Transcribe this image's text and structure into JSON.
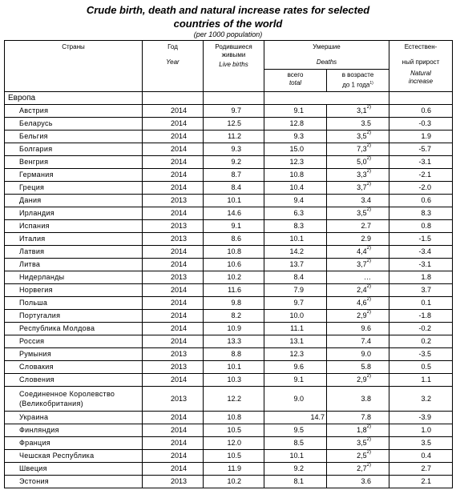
{
  "title_line1": "Crude birth, death and natural increase rates for selected",
  "title_line2": "countries of the world",
  "unit": "(per 1000 population)",
  "headers": {
    "country_ru": "Страны",
    "year_ru": "Год",
    "year_en": "Year",
    "births_ru_1": "Родившиеся",
    "births_ru_2": "живыми",
    "births_en": "Live births",
    "deaths_ru": "Умершие",
    "deaths_en": "Deaths",
    "total_ru": "всего",
    "total_en": "total",
    "infant_ru_1": "в возрасте",
    "infant_ru_2": "до 1 года",
    "infant_note": "1)",
    "nat_ru_1": "Естествен-",
    "nat_ru_2": "ный прирост",
    "nat_en_1": "Natural",
    "nat_en_2": "increase"
  },
  "region": "Европа",
  "rows": [
    {
      "country": "Австрия",
      "year": "2014",
      "births": "9.7",
      "deaths": "9.1",
      "infant": "3,1",
      "note": "2)",
      "natural": "0.6"
    },
    {
      "country": "Беларусь",
      "year": "2014",
      "births": "12.5",
      "deaths": "12.8",
      "infant": "3.5",
      "note": "",
      "natural": "-0.3"
    },
    {
      "country": "Бельгия",
      "year": "2014",
      "births": "11.2",
      "deaths": "9.3",
      "infant": "3,5",
      "note": "2)",
      "natural": "1.9"
    },
    {
      "country": "Болгария",
      "year": "2014",
      "births": "9.3",
      "deaths": "15.0",
      "infant": "7,3",
      "note": "2)",
      "natural": "-5.7"
    },
    {
      "country": "Венгрия",
      "year": "2014",
      "births": "9.2",
      "deaths": "12.3",
      "infant": "5,0",
      "note": "2)",
      "natural": "-3.1"
    },
    {
      "country": "Германия",
      "year": "2014",
      "births": "8.7",
      "deaths": "10.8",
      "infant": "3,3",
      "note": "2)",
      "natural": "-2.1"
    },
    {
      "country": "Греция",
      "year": "2014",
      "births": "8.4",
      "deaths": "10.4",
      "infant": "3,7",
      "note": "2)",
      "natural": "-2.0"
    },
    {
      "country": "Дания",
      "year": "2013",
      "births": "10.1",
      "deaths": "9.4",
      "infant": "3.4",
      "note": "",
      "natural": "0.6"
    },
    {
      "country": "Ирландия",
      "year": "2014",
      "births": "14.6",
      "deaths": "6.3",
      "infant": "3,5",
      "note": "2)",
      "natural": "8.3"
    },
    {
      "country": "Испания",
      "year": "2013",
      "births": "9.1",
      "deaths": "8.3",
      "infant": "2.7",
      "note": "",
      "natural": "0.8"
    },
    {
      "country": "Италия",
      "year": "2013",
      "births": "8.6",
      "deaths": "10.1",
      "infant": "2.9",
      "note": "",
      "natural": "-1.5"
    },
    {
      "country": "Латвия",
      "year": "2014",
      "births": "10.8",
      "deaths": "14.2",
      "infant": "4,4",
      "note": "2)",
      "natural": "-3.4"
    },
    {
      "country": "Литва",
      "year": "2014",
      "births": "10.6",
      "deaths": "13.7",
      "infant": "3,7",
      "note": "2)",
      "natural": "-3.1"
    },
    {
      "country": "Нидерланды",
      "year": "2013",
      "births": "10.2",
      "deaths": "8.4",
      "infant": "…",
      "note": "",
      "natural": "1.8"
    },
    {
      "country": "Норвегия",
      "year": "2014",
      "births": "11.6",
      "deaths": "7.9",
      "infant": "2,4",
      "note": "2)",
      "natural": "3.7"
    },
    {
      "country": "Польша",
      "year": "2014",
      "births": "9.8",
      "deaths": "9.7",
      "infant": "4,6",
      "note": "2)",
      "natural": "0.1"
    },
    {
      "country": "Португалия",
      "year": "2014",
      "births": "8.2",
      "deaths": "10.0",
      "infant": "2,9",
      "note": "2)",
      "natural": "-1.8"
    },
    {
      "country": "Республика Молдова",
      "year": "2014",
      "births": "10.9",
      "deaths": "11.1",
      "infant": "9.6",
      "note": "",
      "natural": "-0.2"
    },
    {
      "country": "Россия",
      "year": "2014",
      "births": "13.3",
      "deaths": "13.1",
      "infant": "7.4",
      "note": "",
      "natural": "0.2"
    },
    {
      "country": "Румыния",
      "year": "2013",
      "births": "8.8",
      "deaths": "12.3",
      "infant": "9.0",
      "note": "",
      "natural": "-3.5"
    },
    {
      "country": "Словакия",
      "year": "2013",
      "births": "10.1",
      "deaths": "9.6",
      "infant": "5.8",
      "note": "",
      "natural": "0.5"
    },
    {
      "country": "Словения",
      "year": "2014",
      "births": "10.3",
      "deaths": "9.1",
      "infant": "2,9",
      "note": "2)",
      "natural": "1.1"
    },
    {
      "country": "Соединенное Королевство",
      "country2": "(Великобритания)",
      "year": "2013",
      "births": "12.2",
      "deaths": "9.0",
      "infant": "3.8",
      "note": "",
      "natural": "3.2"
    },
    {
      "country": "Украина",
      "year": "2014",
      "births": "10.8",
      "deaths": "14.7",
      "infant": "7.8",
      "note": "",
      "natural": "-3.9",
      "deaths_left": true
    },
    {
      "country": "Финляндия",
      "year": "2014",
      "births": "10.5",
      "deaths": "9.5",
      "infant": "1,8",
      "note": "2)",
      "natural": "1.0"
    },
    {
      "country": "Франция",
      "year": "2014",
      "births": "12.0",
      "deaths": "8.5",
      "infant": "3,5",
      "note": "2)",
      "natural": "3.5"
    },
    {
      "country": "Чешская Республика",
      "year": "2014",
      "births": "10.5",
      "deaths": "10.1",
      "infant": "2,5",
      "note": "2)",
      "natural": "0.4"
    },
    {
      "country": "Швеция",
      "year": "2014",
      "births": "11.9",
      "deaths": "9.2",
      "infant": "2,7",
      "note": "2)",
      "natural": "2.7"
    },
    {
      "country": "Эстония",
      "year": "2013",
      "births": "10.2",
      "deaths": "8.1",
      "infant": "3.6",
      "note": "",
      "natural": "2.1"
    }
  ]
}
